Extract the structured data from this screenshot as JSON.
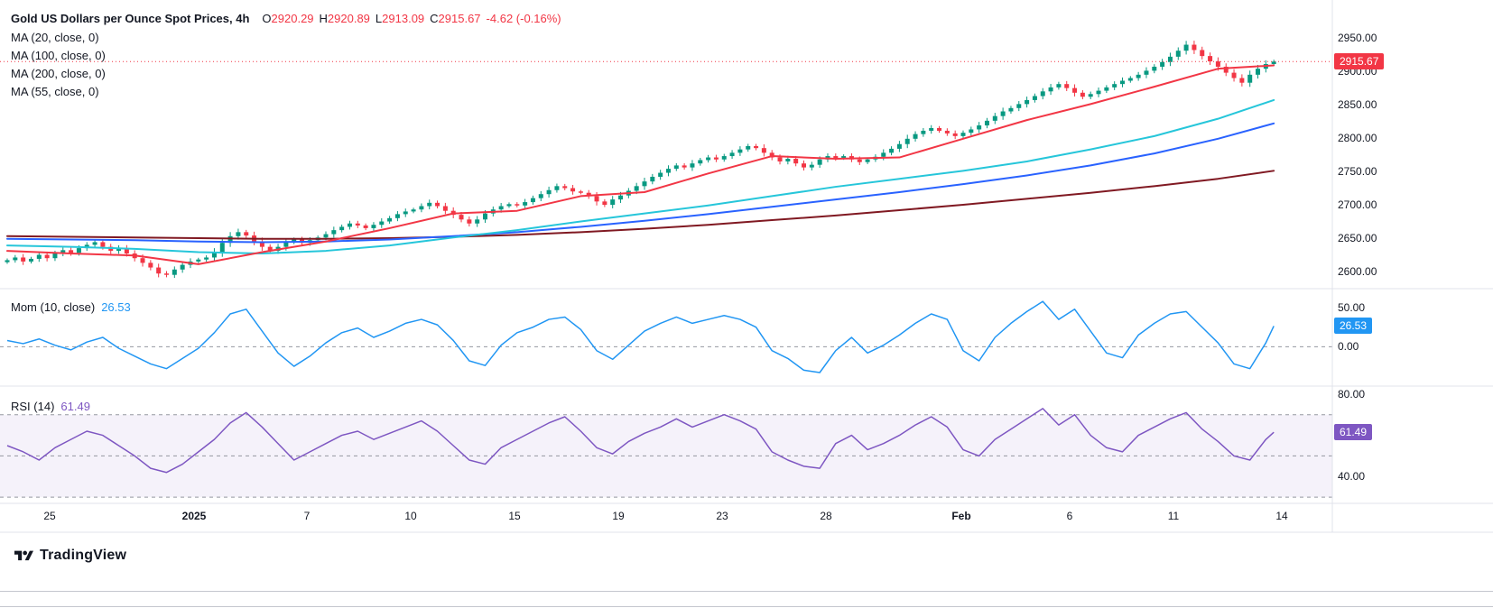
{
  "header": {
    "title": "Gold US Dollars per Ounce Spot Prices, 4h",
    "ohlc": {
      "o_label": "O",
      "open": "2920.29",
      "h_label": "H",
      "high": "2920.89",
      "l_label": "L",
      "low": "2913.09",
      "c_label": "C",
      "close": "2915.67",
      "change": "-4.62 (-0.16%)"
    },
    "ma_indicators": [
      "MA (20, close, 0)",
      "MA (100, close, 0)",
      "MA (200, close, 0)",
      "MA (55, close, 0)"
    ]
  },
  "indicators": {
    "momentum": {
      "label": "Mom (10, close)",
      "value": "26.53"
    },
    "rsi": {
      "label": "RSI (14)",
      "value": "61.49"
    }
  },
  "time_axis": [
    {
      "label": "25"
    },
    {
      "label": "2025"
    },
    {
      "label": "7"
    },
    {
      "label": "10"
    },
    {
      "label": "15"
    },
    {
      "label": "19"
    },
    {
      "label": "23"
    },
    {
      "label": "28"
    },
    {
      "label": "Feb"
    },
    {
      "label": "6"
    },
    {
      "label": "11"
    },
    {
      "label": "14"
    }
  ],
  "footer": {
    "brand": "TradingView"
  },
  "colors": {
    "up": "#089981",
    "down": "#f23645",
    "ma20": "#f23645",
    "ma55": "#26c6da",
    "ma100": "#2962ff",
    "ma200": "#801922",
    "momentum": "#2196f3",
    "rsi": "#7e57c2",
    "price_badge": "#f23645",
    "momentum_badge": "#2196f3",
    "rsi_badge": "#7e57c2"
  },
  "chart_data": [
    {
      "type": "candlestick",
      "title": "Gold US Dollars per Ounce Spot Prices, 4h",
      "timeframe": "4h",
      "ylim": [
        2578,
        3008
      ],
      "yticks": [
        2950,
        2900,
        2850,
        2800,
        2750,
        2700,
        2650,
        2600
      ],
      "ytick_labels": [
        "2950.00",
        "2900.00",
        "2850.00",
        "2800.00",
        "2750.00",
        "2700.00",
        "2650.00",
        "2600.00"
      ],
      "badge": "2915.67",
      "badge_color": "#f23645",
      "last_price": 2915.67,
      "up_color": "#089981",
      "down_color": "#f23645",
      "closes": [
        2618,
        2622,
        2616,
        2620,
        2626,
        2621,
        2628,
        2633,
        2629,
        2636,
        2641,
        2645,
        2638,
        2632,
        2636,
        2628,
        2621,
        2614,
        2607,
        2598,
        2596,
        2604,
        2611,
        2616,
        2619,
        2622,
        2630,
        2644,
        2654,
        2660,
        2655,
        2646,
        2638,
        2632,
        2638,
        2645,
        2649,
        2644,
        2648,
        2652,
        2657,
        2663,
        2668,
        2673,
        2670,
        2666,
        2671,
        2676,
        2681,
        2687,
        2691,
        2694,
        2699,
        2704,
        2699,
        2692,
        2686,
        2679,
        2673,
        2679,
        2688,
        2694,
        2699,
        2702,
        2700,
        2705,
        2711,
        2717,
        2723,
        2729,
        2726,
        2721,
        2719,
        2714,
        2706,
        2701,
        2709,
        2715,
        2722,
        2729,
        2736,
        2743,
        2749,
        2755,
        2760,
        2757,
        2763,
        2768,
        2772,
        2769,
        2774,
        2779,
        2784,
        2789,
        2786,
        2779,
        2772,
        2766,
        2770,
        2763,
        2757,
        2761,
        2769,
        2774,
        2771,
        2774,
        2769,
        2765,
        2769,
        2773,
        2779,
        2785,
        2792,
        2800,
        2807,
        2812,
        2816,
        2812,
        2808,
        2804,
        2809,
        2814,
        2820,
        2827,
        2834,
        2841,
        2846,
        2852,
        2858,
        2864,
        2871,
        2877,
        2882,
        2876,
        2869,
        2863,
        2867,
        2872,
        2877,
        2882,
        2887,
        2891,
        2896,
        2902,
        2908,
        2915,
        2923,
        2932,
        2941,
        2933,
        2924,
        2916,
        2908,
        2899,
        2891,
        2884,
        2896,
        2905,
        2912,
        2915.67
      ],
      "series": [
        {
          "name": "MA200",
          "color": "#801922",
          "step": 8,
          "values": [
            2654,
            2653,
            2652,
            2651,
            2650,
            2650,
            2651,
            2653,
            2656,
            2660,
            2665,
            2671,
            2678,
            2685,
            2693,
            2701,
            2710,
            2719,
            2729,
            2740,
            2752
          ]
        },
        {
          "name": "MA100",
          "color": "#2962ff",
          "step": 8,
          "values": [
            2650,
            2649,
            2648,
            2646,
            2645,
            2646,
            2649,
            2654,
            2660,
            2668,
            2677,
            2687,
            2698,
            2709,
            2720,
            2732,
            2745,
            2760,
            2778,
            2800,
            2823
          ]
        },
        {
          "name": "MA55",
          "color": "#26c6da",
          "step": 8,
          "values": [
            2640,
            2638,
            2635,
            2630,
            2628,
            2632,
            2640,
            2652,
            2663,
            2676,
            2688,
            2700,
            2714,
            2728,
            2740,
            2752,
            2766,
            2784,
            2804,
            2830,
            2858
          ]
        },
        {
          "name": "MA20",
          "color": "#f23645",
          "step": 8,
          "values": [
            2632,
            2628,
            2625,
            2612,
            2630,
            2646,
            2666,
            2688,
            2692,
            2714,
            2720,
            2748,
            2774,
            2770,
            2772,
            2800,
            2828,
            2852,
            2878,
            2905,
            2910
          ]
        }
      ]
    },
    {
      "type": "line",
      "title": "Mom (10, close)",
      "last_value": 26.53,
      "ylim": [
        -48,
        72
      ],
      "yticks": [
        50,
        0
      ],
      "ytick_labels": [
        "50.00",
        "0.00"
      ],
      "badge": "26.53",
      "badge_color": "#2196f3",
      "dashed_levels": [
        0
      ],
      "color": "#2196f3",
      "step": 2,
      "values": [
        8,
        4,
        10,
        2,
        -4,
        6,
        12,
        -2,
        -12,
        -22,
        -28,
        -15,
        -2,
        18,
        42,
        48,
        20,
        -8,
        -25,
        -12,
        5,
        18,
        24,
        12,
        20,
        30,
        35,
        28,
        8,
        -18,
        -24,
        2,
        18,
        25,
        35,
        38,
        22,
        -5,
        -16,
        2,
        20,
        30,
        38,
        30,
        35,
        40,
        35,
        25,
        -5,
        -15,
        -30,
        -33,
        -5,
        12,
        -8,
        2,
        15,
        30,
        42,
        35,
        -5,
        -18,
        12,
        30,
        45,
        58,
        35,
        48,
        20,
        -8,
        -14,
        15,
        30,
        42,
        45,
        25,
        5,
        -22,
        -28,
        5,
        26.53
      ]
    },
    {
      "type": "line",
      "title": "RSI (14)",
      "last_value": 61.49,
      "ylim": [
        27,
        83
      ],
      "yticks": [
        80,
        40
      ],
      "ytick_labels": [
        "80.00",
        "40.00"
      ],
      "badge": "61.49",
      "badge_color": "#7e57c2",
      "dashed_levels": [
        70,
        50,
        30
      ],
      "band": [
        30,
        70
      ],
      "band_color": "rgba(126, 87, 194, 0.08)",
      "color": "#7e57c2",
      "step": 2,
      "values": [
        55,
        52,
        48,
        54,
        58,
        62,
        60,
        55,
        50,
        44,
        42,
        46,
        52,
        58,
        66,
        71,
        64,
        56,
        48,
        52,
        56,
        60,
        62,
        58,
        61,
        64,
        67,
        62,
        55,
        48,
        46,
        54,
        58,
        62,
        66,
        69,
        62,
        54,
        51,
        57,
        61,
        64,
        68,
        64,
        67,
        70,
        67,
        63,
        52,
        48,
        45,
        44,
        56,
        60,
        53,
        56,
        60,
        65,
        69,
        64,
        53,
        50,
        58,
        63,
        68,
        73,
        65,
        70,
        60,
        54,
        52,
        60,
        64,
        68,
        71,
        63,
        57,
        50,
        48,
        58,
        61.49
      ]
    }
  ]
}
